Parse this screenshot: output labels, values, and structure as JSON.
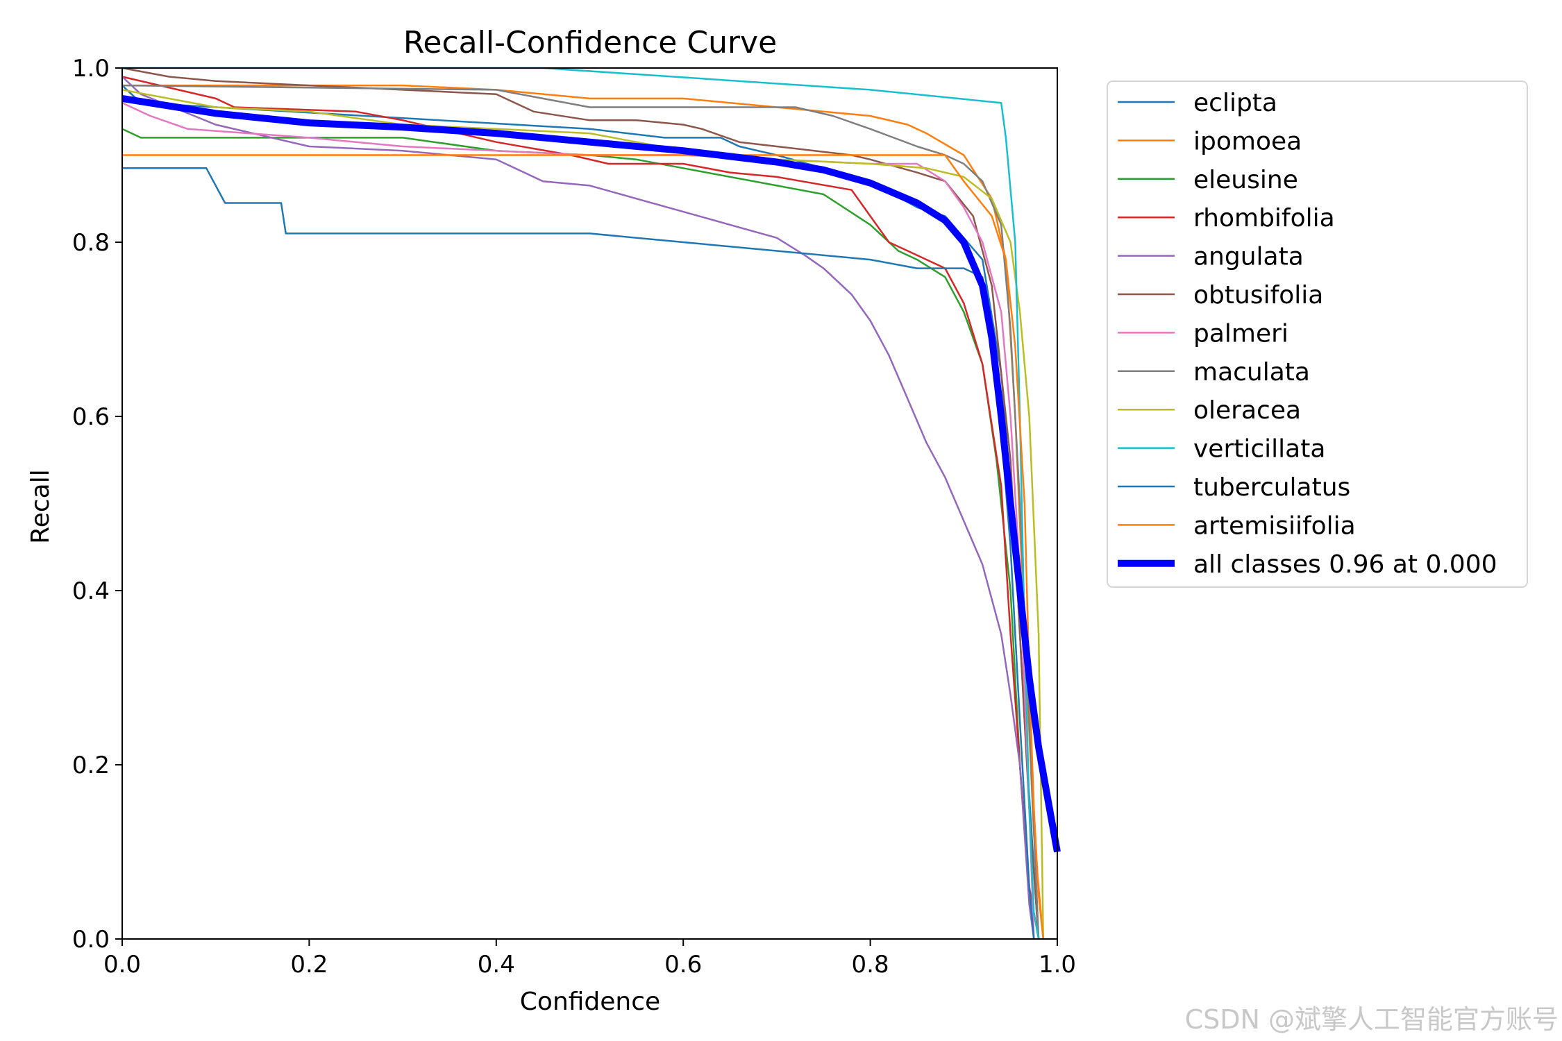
{
  "chart_data": {
    "type": "line",
    "title": "Recall-Confidence Curve",
    "xlabel": "Confidence",
    "ylabel": "Recall",
    "xlim": [
      0,
      1
    ],
    "ylim": [
      0,
      1
    ],
    "x_ticks": [
      "0.0",
      "0.2",
      "0.4",
      "0.6",
      "0.8",
      "1.0"
    ],
    "y_ticks": [
      "0.0",
      "0.2",
      "0.4",
      "0.6",
      "0.8",
      "1.0"
    ],
    "legend_position": "outside-right",
    "grid": false,
    "series": [
      {
        "name": "eclipta",
        "color": "#1f77b4",
        "width": 2.5,
        "x": [
          0,
          0.02,
          0.5,
          0.58,
          0.64,
          0.66,
          0.7,
          0.8,
          0.85,
          0.88,
          0.92,
          0.94,
          0.955,
          0.965,
          0.975,
          0.98
        ],
        "y": [
          0.98,
          0.96,
          0.93,
          0.92,
          0.92,
          0.91,
          0.9,
          0.87,
          0.84,
          0.83,
          0.78,
          0.65,
          0.45,
          0.25,
          0.08,
          0.0
        ]
      },
      {
        "name": "ipomoea",
        "color": "#ff7f0e",
        "width": 2.5,
        "x": [
          0,
          0.3,
          0.4,
          0.5,
          0.6,
          0.7,
          0.8,
          0.84,
          0.86,
          0.9,
          0.93,
          0.945,
          0.955,
          0.965,
          0.975,
          0.985
        ],
        "y": [
          0.98,
          0.98,
          0.975,
          0.965,
          0.965,
          0.955,
          0.945,
          0.935,
          0.925,
          0.9,
          0.85,
          0.78,
          0.6,
          0.35,
          0.12,
          0.0
        ]
      },
      {
        "name": "eleusine",
        "color": "#2ca02c",
        "width": 2.5,
        "x": [
          0,
          0.02,
          0.3,
          0.4,
          0.5,
          0.55,
          0.6,
          0.65,
          0.7,
          0.75,
          0.8,
          0.83,
          0.85,
          0.88,
          0.9,
          0.92,
          0.935,
          0.95,
          0.96,
          0.97,
          0.975
        ],
        "y": [
          0.93,
          0.92,
          0.92,
          0.905,
          0.9,
          0.895,
          0.885,
          0.875,
          0.865,
          0.855,
          0.82,
          0.79,
          0.78,
          0.76,
          0.72,
          0.66,
          0.55,
          0.4,
          0.2,
          0.05,
          0.0
        ]
      },
      {
        "name": "rhombifolia",
        "color": "#d62728",
        "width": 2.5,
        "x": [
          0,
          0.1,
          0.12,
          0.25,
          0.3,
          0.4,
          0.48,
          0.52,
          0.6,
          0.65,
          0.7,
          0.78,
          0.8,
          0.82,
          0.84,
          0.88,
          0.9,
          0.92,
          0.94,
          0.95,
          0.96,
          0.97,
          0.98
        ],
        "y": [
          0.99,
          0.965,
          0.955,
          0.95,
          0.94,
          0.915,
          0.9,
          0.89,
          0.89,
          0.88,
          0.875,
          0.86,
          0.83,
          0.8,
          0.79,
          0.77,
          0.73,
          0.66,
          0.52,
          0.35,
          0.2,
          0.06,
          0.0
        ]
      },
      {
        "name": "angulata",
        "color": "#9467bd",
        "width": 2.5,
        "x": [
          0,
          0.02,
          0.1,
          0.2,
          0.3,
          0.4,
          0.45,
          0.5,
          0.55,
          0.6,
          0.65,
          0.7,
          0.73,
          0.75,
          0.78,
          0.8,
          0.82,
          0.84,
          0.86,
          0.88,
          0.9,
          0.92,
          0.94,
          0.95,
          0.96,
          0.965,
          0.97,
          0.975
        ],
        "y": [
          0.99,
          0.97,
          0.935,
          0.91,
          0.905,
          0.895,
          0.87,
          0.865,
          0.85,
          0.835,
          0.82,
          0.805,
          0.785,
          0.77,
          0.74,
          0.71,
          0.67,
          0.62,
          0.57,
          0.53,
          0.48,
          0.43,
          0.35,
          0.28,
          0.2,
          0.12,
          0.04,
          0.0
        ]
      },
      {
        "name": "obtusifolia",
        "color": "#8c564b",
        "width": 2.5,
        "x": [
          0,
          0.05,
          0.1,
          0.2,
          0.4,
          0.44,
          0.5,
          0.55,
          0.6,
          0.62,
          0.66,
          0.7,
          0.78,
          0.8,
          0.85,
          0.88,
          0.91,
          0.93,
          0.95,
          0.96,
          0.97,
          0.98
        ],
        "y": [
          1.0,
          0.99,
          0.985,
          0.98,
          0.97,
          0.95,
          0.94,
          0.94,
          0.935,
          0.93,
          0.915,
          0.91,
          0.9,
          0.895,
          0.88,
          0.87,
          0.83,
          0.75,
          0.55,
          0.35,
          0.15,
          0.0
        ]
      },
      {
        "name": "palmeri",
        "color": "#e377c2",
        "width": 2.5,
        "x": [
          0,
          0.03,
          0.07,
          0.2,
          0.3,
          0.4,
          0.5,
          0.6,
          0.7,
          0.8,
          0.85,
          0.88,
          0.9,
          0.92,
          0.94,
          0.95,
          0.96,
          0.97,
          0.975
        ],
        "y": [
          0.96,
          0.945,
          0.93,
          0.92,
          0.91,
          0.905,
          0.9,
          0.9,
          0.895,
          0.89,
          0.89,
          0.87,
          0.84,
          0.8,
          0.72,
          0.6,
          0.42,
          0.15,
          0.0
        ]
      },
      {
        "name": "maculata",
        "color": "#7f7f7f",
        "width": 2.5,
        "x": [
          0,
          0.4,
          0.5,
          0.6,
          0.72,
          0.76,
          0.8,
          0.85,
          0.88,
          0.9,
          0.92,
          0.94,
          0.95,
          0.96,
          0.97,
          0.98
        ],
        "y": [
          0.98,
          0.975,
          0.955,
          0.955,
          0.955,
          0.945,
          0.93,
          0.91,
          0.9,
          0.89,
          0.87,
          0.82,
          0.7,
          0.5,
          0.25,
          0.0
        ]
      },
      {
        "name": "oleracea",
        "color": "#bcbd22",
        "width": 2.5,
        "x": [
          0,
          0.1,
          0.2,
          0.3,
          0.4,
          0.5,
          0.6,
          0.7,
          0.8,
          0.86,
          0.9,
          0.93,
          0.95,
          0.96,
          0.97,
          0.98,
          0.985
        ],
        "y": [
          0.975,
          0.955,
          0.95,
          0.935,
          0.93,
          0.925,
          0.905,
          0.895,
          0.89,
          0.885,
          0.875,
          0.85,
          0.8,
          0.72,
          0.6,
          0.35,
          0.0
        ]
      },
      {
        "name": "verticillata",
        "color": "#17becf",
        "width": 2.5,
        "x": [
          0,
          0.45,
          0.8,
          0.94,
          0.945,
          0.955,
          0.96,
          0.965,
          0.97,
          0.975,
          0.98
        ],
        "y": [
          1.0,
          1.0,
          0.975,
          0.96,
          0.92,
          0.8,
          0.6,
          0.35,
          0.15,
          0.03,
          0.0
        ]
      },
      {
        "name": "tuberculatus",
        "color": "#1f77b4",
        "width": 2.5,
        "x": [
          0,
          0.09,
          0.11,
          0.17,
          0.175,
          0.5,
          0.6,
          0.7,
          0.8,
          0.85,
          0.9,
          0.92,
          0.935,
          0.95,
          0.96,
          0.97,
          0.975
        ],
        "y": [
          0.885,
          0.885,
          0.845,
          0.845,
          0.81,
          0.81,
          0.8,
          0.79,
          0.78,
          0.77,
          0.77,
          0.76,
          0.65,
          0.45,
          0.25,
          0.06,
          0.0
        ]
      },
      {
        "name": "artemisiifolia",
        "color": "#ff7f0e",
        "width": 2.5,
        "x": [
          0,
          0.88,
          0.9,
          0.93,
          0.945,
          0.955,
          0.965,
          0.97,
          0.975,
          0.98,
          0.985
        ],
        "y": [
          0.9,
          0.9,
          0.87,
          0.83,
          0.78,
          0.68,
          0.5,
          0.3,
          0.15,
          0.05,
          0.0
        ]
      },
      {
        "name": "all classes 0.96 at 0.000",
        "color": "#0000ff",
        "width": 10,
        "x": [
          0,
          0.1,
          0.2,
          0.3,
          0.4,
          0.5,
          0.6,
          0.7,
          0.75,
          0.8,
          0.85,
          0.88,
          0.9,
          0.92,
          0.93,
          0.94,
          0.95,
          0.96,
          0.97,
          0.98,
          0.99,
          1.0
        ],
        "y": [
          0.965,
          0.948,
          0.937,
          0.932,
          0.925,
          0.915,
          0.905,
          0.892,
          0.883,
          0.868,
          0.845,
          0.825,
          0.8,
          0.75,
          0.69,
          0.6,
          0.5,
          0.4,
          0.3,
          0.22,
          0.16,
          0.1
        ]
      }
    ]
  },
  "watermark": "CSDN @斌擎人工智能官方账号"
}
